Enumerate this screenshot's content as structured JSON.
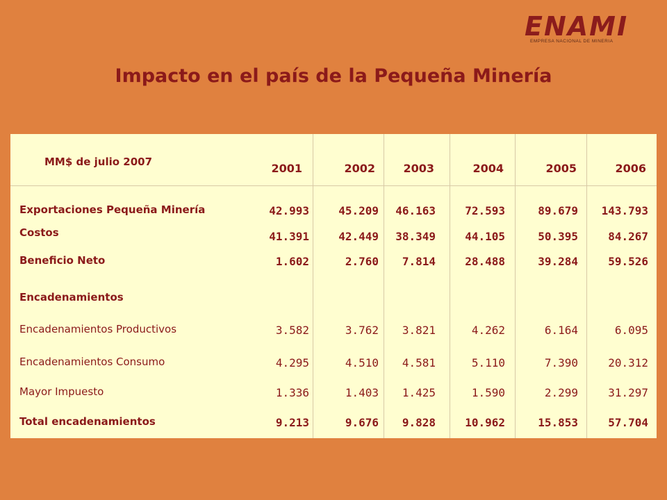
{
  "logo": {
    "name": "ENAMI",
    "subtitle": "EMPRESA NACIONAL DE MINERIA"
  },
  "title": "Impacto en el país de la Pequeña Minería",
  "table": {
    "unit_label": "MM$ de julio 2007",
    "years": [
      "2001",
      "2002",
      "2003",
      "2004",
      "2005",
      "2006"
    ],
    "rows": [
      {
        "label": "Exportaciones Pequeña Minería",
        "values": [
          "42.993",
          "45.209",
          "46.163",
          "72.593",
          "89.679",
          "143.793"
        ]
      },
      {
        "label": "Costos",
        "values": [
          "41.391",
          "42.449",
          "38.349",
          "44.105",
          "50.395",
          "84.267"
        ]
      },
      {
        "label": "Beneficio Neto",
        "values": [
          "1.602",
          "2.760",
          "7.814",
          "28.488",
          "39.284",
          "59.526"
        ]
      },
      {
        "label": "Encadenamientos"
      },
      {
        "label": "Encadenamientos Productivos",
        "values": [
          "3.582",
          "3.762",
          "3.821",
          "4.262",
          "6.164",
          "6.095"
        ]
      },
      {
        "label": "Encadenamientos Consumo",
        "values": [
          "4.295",
          "4.510",
          "4.581",
          "5.110",
          "7.390",
          "20.312"
        ]
      },
      {
        "label": "Mayor Impuesto",
        "values": [
          "1.336",
          "1.403",
          "1.425",
          "1.590",
          "2.299",
          "31.297"
        ]
      },
      {
        "label": "Total encadenamientos",
        "values": [
          "9.213",
          "9.676",
          "9.828",
          "10.962",
          "15.853",
          "57.704"
        ]
      }
    ]
  },
  "colors": {
    "background": "#e0813f",
    "panel": "#fffed0",
    "text": "#8b1a1a"
  }
}
